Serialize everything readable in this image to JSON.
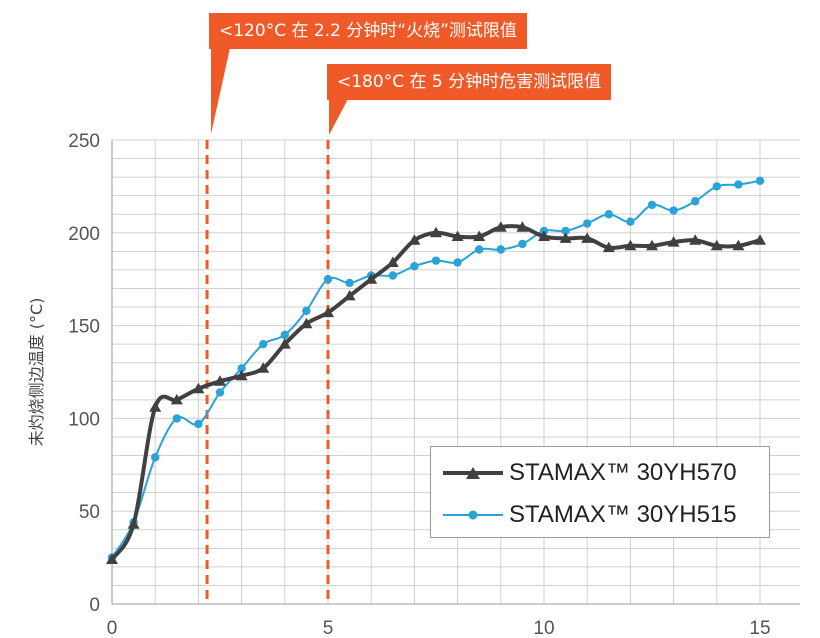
{
  "chart_data": {
    "type": "line",
    "title": "",
    "xlabel": "",
    "ylabel": "未灼烧侧边温度 (°C)",
    "xlim": [
      0,
      15.9
    ],
    "ylim": [
      0,
      250
    ],
    "x_ticks": [
      "0",
      "5",
      "10",
      "15"
    ],
    "x_tick_values": [
      0,
      5,
      10,
      15
    ],
    "y_ticks": [
      "0",
      "50",
      "100",
      "150",
      "200",
      "250"
    ],
    "y_tick_values": [
      0,
      50,
      100,
      150,
      200,
      250
    ],
    "grid": true,
    "legend_position": "bottom-right",
    "series": [
      {
        "name": "STAMAX™ 30YH570",
        "color": "#404040",
        "marker": "triangle",
        "x": [
          0,
          0.5,
          1,
          1.5,
          2,
          2.5,
          3,
          3.5,
          4,
          4.5,
          5,
          5.5,
          6,
          6.5,
          7,
          7.5,
          8,
          8.5,
          9,
          9.5,
          10,
          10.5,
          11,
          11.5,
          12,
          12.5,
          13,
          13.5,
          14,
          14.5,
          15
        ],
        "y": [
          24,
          43,
          106,
          110,
          116,
          120,
          123,
          127,
          140,
          151,
          157,
          166,
          175,
          184,
          196,
          200,
          198,
          198,
          203,
          203,
          198,
          197,
          197,
          192,
          193,
          193,
          195,
          196,
          193,
          193,
          196
        ]
      },
      {
        "name": "STAMAX™ 30YH515",
        "color": "#29a3d8",
        "marker": "circle",
        "x": [
          0,
          0.5,
          1,
          1.5,
          2,
          2.5,
          3,
          3.5,
          4,
          4.5,
          5,
          5.5,
          6,
          6.5,
          7,
          7.5,
          8,
          8.5,
          9,
          9.5,
          10,
          10.5,
          11,
          11.5,
          12,
          12.5,
          13,
          13.5,
          14,
          14.5,
          15
        ],
        "y": [
          25,
          44,
          79,
          100,
          97,
          114,
          127,
          140,
          145,
          158,
          175,
          173,
          177,
          177,
          182,
          185,
          184,
          191,
          191,
          194,
          201,
          201,
          205,
          210,
          206,
          215,
          212,
          217,
          225,
          226,
          228
        ]
      }
    ],
    "annotations": [
      {
        "text": "<120°C 在 2.2 分钟时“火烧”测试限值",
        "x": 2.2
      },
      {
        "text": "<180°C 在 5 分钟时危害测试限值",
        "x": 5
      }
    ]
  },
  "colors": {
    "callout": "#f05a28",
    "dashed_line": "#f05a28",
    "grid": "#d0d0d0",
    "axis": "#9a9a9a",
    "tick_text": "#555555"
  }
}
